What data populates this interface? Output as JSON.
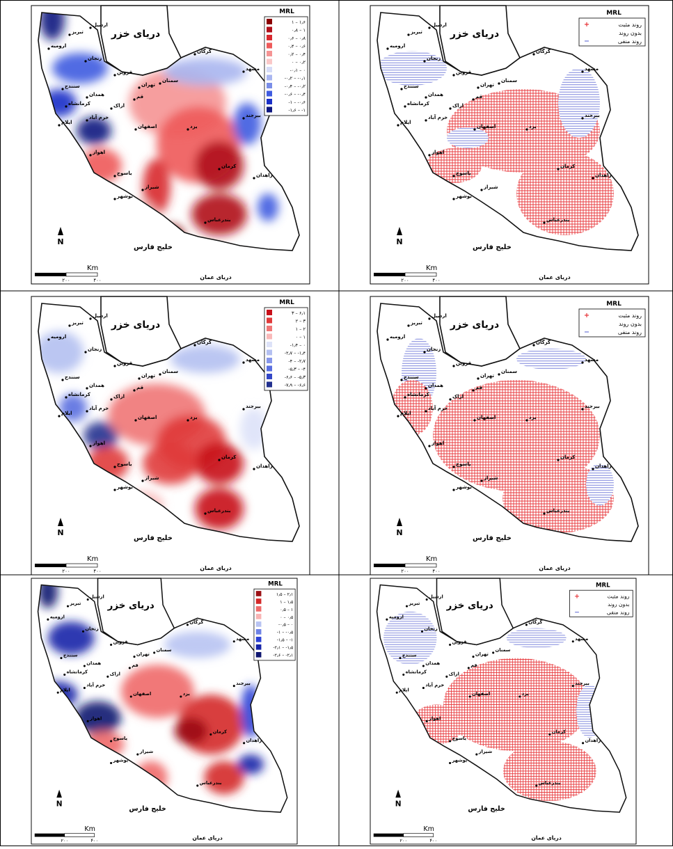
{
  "labels": {
    "legend_title": "MRL",
    "caspian": "دریای خزر",
    "gulf": "خلیج فارس",
    "oman": "دریای عمان",
    "km": "Km",
    "north": "N",
    "scale": [
      "۲۰۰",
      "۴۰۰"
    ]
  },
  "cities": [
    "تبریز",
    "اردبیل",
    "ارومیه",
    "زنجان",
    "قزوین",
    "گرگان",
    "مشهد",
    "سمنان",
    "تهران",
    "سنندج",
    "همدان",
    "کرمانشاه",
    "ایلام",
    "اراک",
    "قم",
    "خرم آباد",
    "اصفهان",
    "یزد",
    "بیرجند",
    "کرمان",
    "زاهدان",
    "اهواز",
    "یاسوج",
    "شیراز",
    "بوشهر",
    "بندرعباس"
  ],
  "trend_legend": [
    "روند مثبت",
    "بدون روند",
    "روند منفی"
  ],
  "gradient_legends": [
    [
      {
        "label": "۱ – ۱٫۶",
        "color": "#8b0000"
      },
      {
        "label": "۰٫۸ – ۱",
        "color": "#b0101a"
      },
      {
        "label": "۰٫۶ – ۰٫۸",
        "color": "#d8282e"
      },
      {
        "label": "۰٫۴ – ۰٫۶",
        "color": "#ee5a5a"
      },
      {
        "label": "۰٫۲ – ۰٫۴",
        "color": "#f59494"
      },
      {
        "label": "۰ – ۰٫۲",
        "color": "#fac8c8"
      },
      {
        "label": "-۰٫۱ – ۰",
        "color": "#d6dcf7"
      },
      {
        "label": "-۰٫۲ – -۰٫۱",
        "color": "#a9b6f0"
      },
      {
        "label": "-۰٫۴ – -۰٫۲",
        "color": "#7a8ee8"
      },
      {
        "label": "-۰٫۶ – -۰٫۴",
        "color": "#3f5be0"
      },
      {
        "label": "-۱ – -۰٫۶",
        "color": "#1a2fc8"
      },
      {
        "label": "-۱٫۶ – -۱",
        "color": "#0d1680"
      }
    ],
    [
      {
        "label": "۳ – ۶٫۱",
        "color": "#c8101a"
      },
      {
        "label": "۲ – ۳",
        "color": "#e03a3a"
      },
      {
        "label": "۱ – ۲",
        "color": "#f07676"
      },
      {
        "label": "۰ – ۱",
        "color": "#f9b9b9"
      },
      {
        "label": "-۱٫۴ – ۰",
        "color": "#dde2f8"
      },
      {
        "label": "-۲٫۷ – -۱٫۴",
        "color": "#b4c0f1"
      },
      {
        "label": "-۴ – -۲٫۷",
        "color": "#8797ea"
      },
      {
        "label": "-۵٫۳ – -۴",
        "color": "#5a6fe0"
      },
      {
        "label": "-۶٫۶ – -۵٫۳",
        "color": "#3347c7"
      },
      {
        "label": "-۷٫۹ – -۶٫۶",
        "color": "#22308f"
      }
    ],
    [
      {
        "label": "۱٫۵ – ۲٫۱",
        "color": "#9b1015"
      },
      {
        "label": "۱ – ۱٫۵",
        "color": "#d42828"
      },
      {
        "label": "۰٫۵ – ۱",
        "color": "#ef6a6a"
      },
      {
        "label": "۰ – ۰٫۵",
        "color": "#f8b4b4"
      },
      {
        "label": "-۰٫۵ – ۰",
        "color": "#b8c3f2"
      },
      {
        "label": "-۱ – -۰٫۵",
        "color": "#6d82e6"
      },
      {
        "label": "-۱٫۵ – -۱",
        "color": "#2c42d6"
      },
      {
        "label": "-۲٫۱ – -۱٫۵",
        "color": "#1624a8"
      },
      {
        "label": "-۲٫۶ – -۲٫۱",
        "color": "#0e1670"
      }
    ]
  ]
}
